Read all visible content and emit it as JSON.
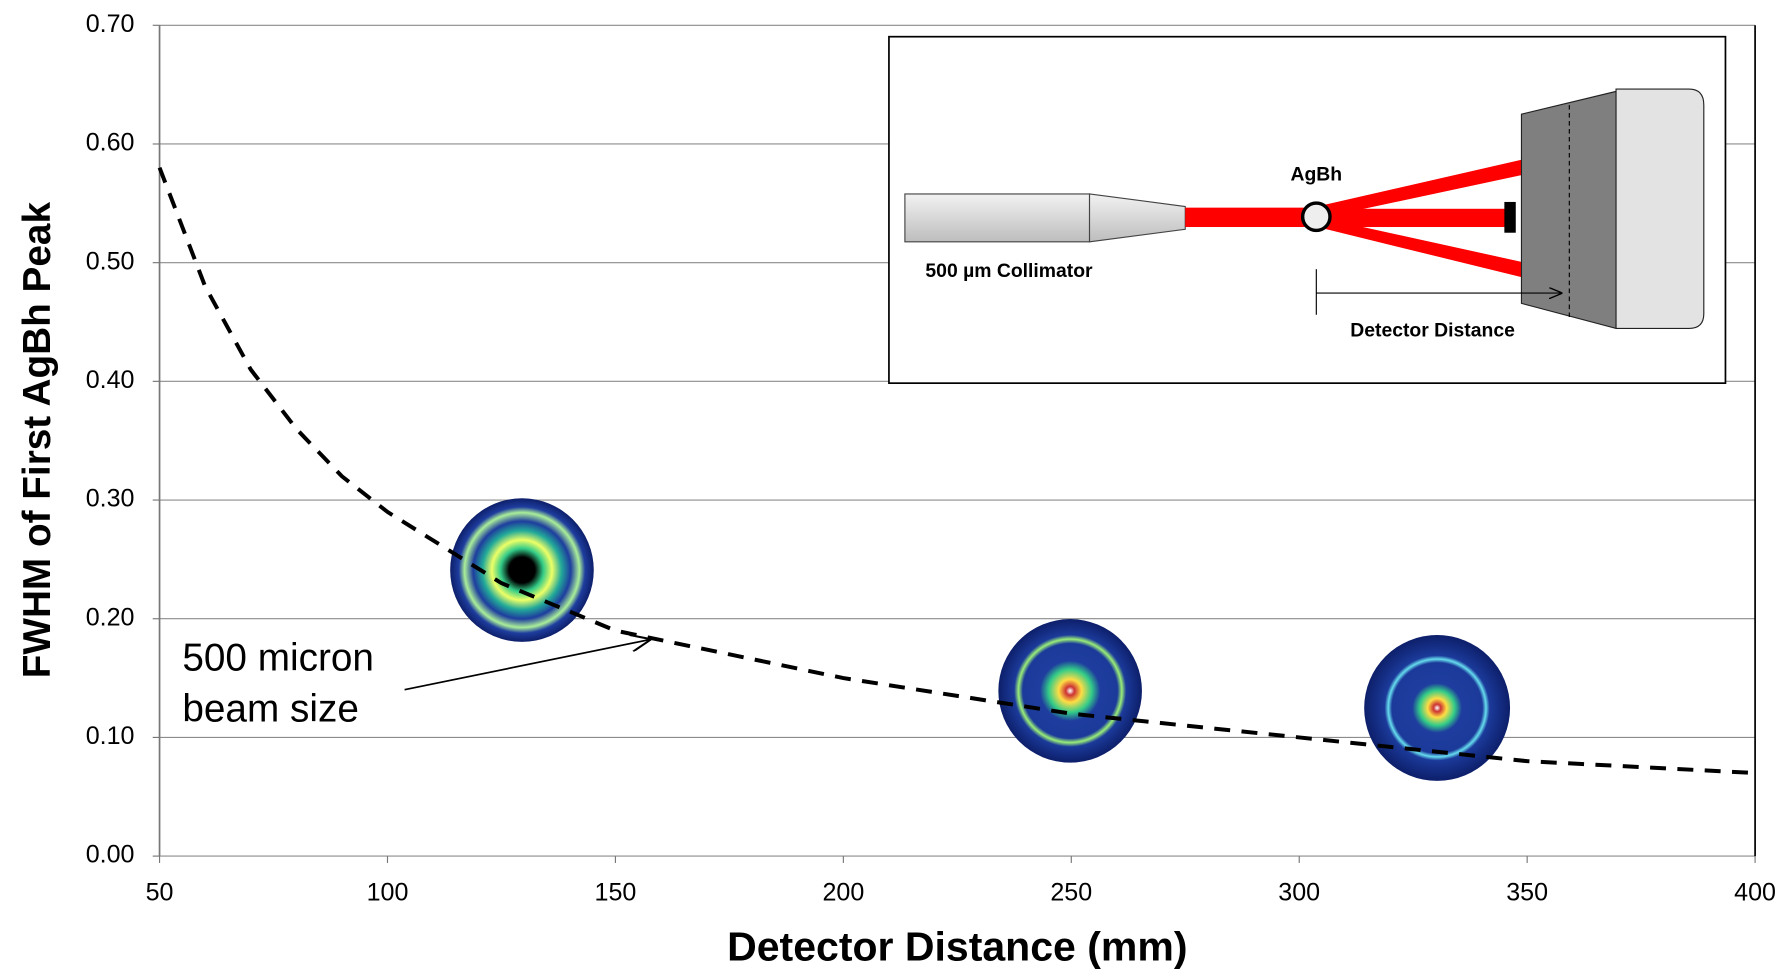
{
  "chart_data": {
    "type": "line",
    "x_label": "Detector Distance (mm)",
    "y_label": "FWHM of First AgBh Peak",
    "x": [
      50,
      60,
      70,
      80,
      90,
      100,
      125,
      150,
      175,
      200,
      250,
      300,
      350,
      400
    ],
    "series": [
      {
        "color": "#000000",
        "values": [
          0.58,
          0.48,
          0.41,
          0.36,
          0.32,
          0.29,
          0.23,
          0.19,
          0.17,
          0.15,
          0.12,
          0.1,
          0.08,
          0.07
        ]
      }
    ],
    "xlim": [
      50,
      400
    ],
    "xticks": [
      50,
      100,
      150,
      200,
      250,
      300,
      350,
      400
    ],
    "ylim": [
      0,
      0.7
    ],
    "yticks": [
      {
        "value": 0,
        "label": "0.00"
      },
      {
        "value": 0.1,
        "label": "0.10"
      },
      {
        "value": 0.2,
        "label": "0.20"
      },
      {
        "value": 0.3,
        "label": "0.30"
      },
      {
        "value": 0.4,
        "label": "0.40"
      },
      {
        "value": 0.5,
        "label": "0.50"
      },
      {
        "value": 0.6,
        "label": "0.60"
      },
      {
        "value": 0.7,
        "label": "0.70"
      }
    ],
    "grid": true,
    "annotation": [
      "500 micron",
      "beam size"
    ],
    "inset_labels": {
      "sample": "AgBh",
      "collimator": "500 µm Collimator",
      "distance": "Detector Distance"
    }
  }
}
